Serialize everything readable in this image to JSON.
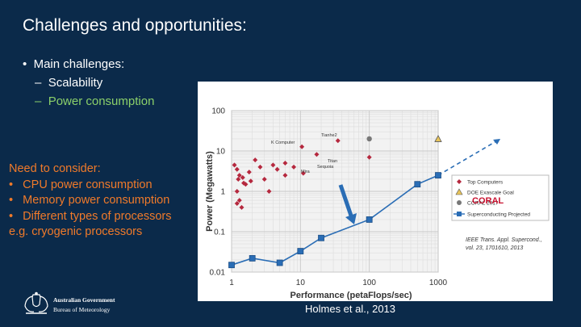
{
  "slide": {
    "title": "Challenges and opportunities:",
    "challenges_heading": "Main challenges:",
    "challenges": [
      "Scalability",
      "Power consumption"
    ],
    "consider_heading": "Need to consider:",
    "consider_items": [
      "CPU power consumption",
      "Memory power consumption",
      "Different types of processors"
    ],
    "consider_note": "e.g. cryogenic processors",
    "citation": "Holmes et al., 2013",
    "logo": {
      "line1": "Australian Government",
      "line2": "Bureau of Meteorology"
    },
    "colors": {
      "background": "#0b2a4a",
      "consider_text": "#f07a2a",
      "highlight_bullet": "#8bd06a"
    }
  },
  "chart_data": {
    "type": "scatter",
    "xlabel": "Performance (petaFlops/sec)",
    "ylabel": "Power (Megawatts)",
    "xscale": "log",
    "yscale": "log",
    "xlim": [
      1,
      1000
    ],
    "ylim": [
      0.01,
      100
    ],
    "x_ticks": [
      "1",
      "10",
      "100",
      "1000"
    ],
    "y_ticks": [
      "100",
      "10",
      "1",
      "0.1",
      "0.01"
    ],
    "grid": true,
    "legend_position": "right",
    "legend": [
      "Top Computers",
      "DOE Exascale Goal",
      "CORAL 2017",
      "Superconducting Projected"
    ],
    "coral_sub": "CORAL",
    "annotations": {
      "k_computer": "K Computer",
      "tianhe2": "Tianhe2",
      "titan": "Titan",
      "sequoia": "Sequoia",
      "mira": "Mira"
    },
    "source_note": "IEEE Trans. Appl. Supercond., vol. 23, 1701610, 2013",
    "series": [
      {
        "name": "Top Computers",
        "color": "#b5283e",
        "points": [
          [
            1.1,
            4.5
          ],
          [
            1.2,
            3.5
          ],
          [
            1.3,
            2.5
          ],
          [
            1.25,
            2.0
          ],
          [
            1.45,
            2.2
          ],
          [
            1.5,
            1.6
          ],
          [
            1.6,
            1.5
          ],
          [
            1.2,
            1.0
          ],
          [
            1.3,
            0.6
          ],
          [
            1.2,
            0.5
          ],
          [
            1.4,
            0.4
          ],
          [
            1.8,
            3.0
          ],
          [
            1.9,
            1.8
          ],
          [
            2.2,
            6.0
          ],
          [
            2.6,
            4.0
          ],
          [
            3.0,
            2.0
          ],
          [
            3.5,
            1.0
          ],
          [
            4.0,
            4.5
          ],
          [
            4.6,
            3.5
          ],
          [
            6.0,
            2.5
          ],
          [
            6.0,
            5.0
          ],
          [
            8.0,
            4.0
          ],
          [
            10.5,
            12.7
          ],
          [
            17.2,
            8.2
          ],
          [
            35,
            18
          ],
          [
            100,
            7.0
          ],
          [
            11,
            2.8
          ]
        ]
      },
      {
        "name": "DOE Exascale Goal",
        "color": "#e8c45a",
        "points": [
          [
            1000,
            20
          ]
        ]
      },
      {
        "name": "CORAL 2017",
        "color": "#777777",
        "points": [
          [
            100,
            20
          ]
        ]
      },
      {
        "name": "Superconducting Projected",
        "color": "#2a6db5",
        "points": [
          [
            1,
            0.015
          ],
          [
            2,
            0.022
          ],
          [
            5,
            0.017
          ],
          [
            10,
            0.033
          ],
          [
            20,
            0.07
          ],
          [
            100,
            0.2
          ],
          [
            500,
            1.5
          ],
          [
            1000,
            2.5
          ]
        ],
        "projection": [
          [
            1000,
            2.5
          ],
          [
            8000,
            20
          ]
        ]
      }
    ]
  }
}
